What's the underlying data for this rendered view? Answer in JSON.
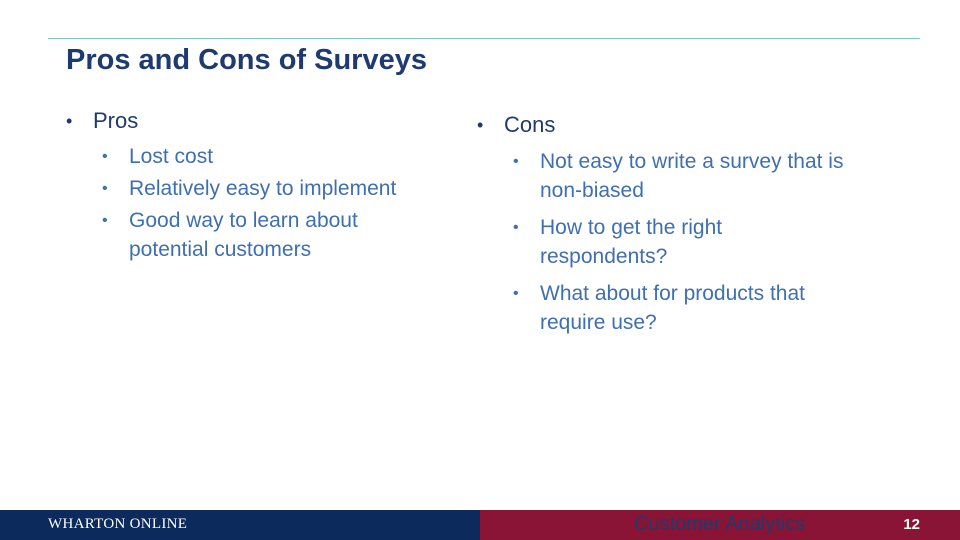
{
  "slide": {
    "title": "Pros and Cons of Surveys"
  },
  "pros": {
    "heading": "Pros",
    "items": [
      "Lost cost",
      "Relatively easy to implement",
      "Good way to learn about potential customers"
    ]
  },
  "cons": {
    "heading": "Cons",
    "items": [
      "Not easy to write a survey that is non-biased",
      "How to get the right respondents?",
      "What about for products that require use?"
    ]
  },
  "footer": {
    "brand": "WHARTON ONLINE",
    "course": "Customer Analytics",
    "page_number": "12"
  },
  "colors": {
    "title": "#1f3a6e",
    "sub_bullet_text": "#3f6fb3",
    "footer_navy": "#0d2a5c",
    "footer_maroon": "#8a1436",
    "rule": "#7fc4cc"
  }
}
